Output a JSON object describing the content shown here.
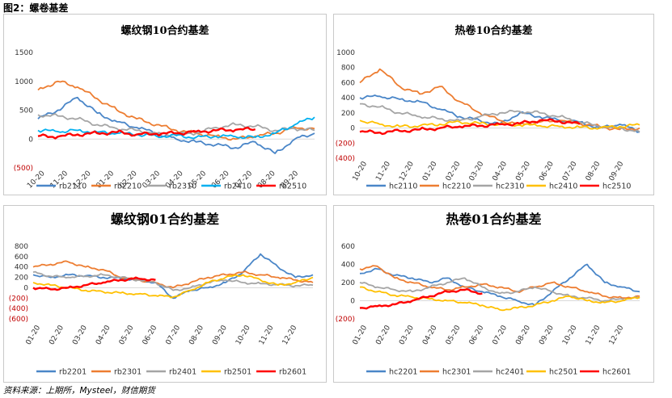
{
  "page": {
    "figure_title": "图2：螺卷基差",
    "source": "资料来源：上期所，Mysteel，财信期货"
  },
  "colors": {
    "blue": "#4a86c8",
    "orange": "#ed7d31",
    "gray": "#a5a5a5",
    "cyan": "#00b0f0",
    "yellow": "#ffc000",
    "red": "#ff0000",
    "negative_label": "#c00000"
  },
  "chart_data": [
    {
      "type": "line",
      "title": "螺纹钢10合约基差",
      "x_tick_labels": [
        "10-20",
        "11-20",
        "12-20",
        "01-20",
        "02-20",
        "03-20",
        "04-20",
        "05-20",
        "06-20",
        "07-20",
        "08-20",
        "09-20"
      ],
      "y_tick_labels": [
        "1500",
        "1000",
        "500",
        "0",
        "(500)"
      ],
      "ylim": [
        -500,
        1500
      ],
      "legend_position": "bottom",
      "series": [
        {
          "name": "rb2110",
          "color": "#4a86c8",
          "values": [
            350,
            500,
            720,
            450,
            300,
            200,
            100,
            0,
            -50,
            -100,
            -150,
            -50,
            -250,
            0,
            100
          ]
        },
        {
          "name": "rb2210",
          "color": "#ed7d31",
          "values": [
            850,
            1000,
            900,
            700,
            500,
            350,
            250,
            150,
            100,
            50,
            0,
            50,
            100,
            200,
            180
          ]
        },
        {
          "name": "rb2310",
          "color": "#a5a5a5",
          "values": [
            420,
            400,
            350,
            250,
            180,
            150,
            100,
            80,
            100,
            200,
            250,
            220,
            150,
            180,
            150
          ]
        },
        {
          "name": "rb2410",
          "color": "#00b0f0",
          "values": [
            150,
            130,
            150,
            120,
            100,
            80,
            50,
            60,
            30,
            50,
            40,
            30,
            100,
            250,
            380
          ]
        },
        {
          "name": "rb2510",
          "color": "#ff0000",
          "values": [
            50,
            40,
            80,
            100,
            120,
            80,
            90,
            100,
            130,
            150,
            160,
            170,
            null,
            null,
            null
          ]
        }
      ]
    },
    {
      "type": "line",
      "title": "热卷10合约基差",
      "x_tick_labels": [
        "10-20",
        "11-20",
        "12-20",
        "01-20",
        "02-20",
        "03-20",
        "04-20",
        "05-20",
        "06-20",
        "07-20",
        "08-20",
        "09-20"
      ],
      "y_tick_labels": [
        "1000",
        "800",
        "600",
        "400",
        "200",
        "0",
        "(200)",
        "(400)"
      ],
      "ylim": [
        -400,
        1000
      ],
      "legend_position": "bottom",
      "series": [
        {
          "name": "hc2110",
          "color": "#4a86c8",
          "values": [
            400,
            420,
            380,
            350,
            250,
            150,
            100,
            50,
            200,
            150,
            100,
            80,
            0,
            50,
            -50
          ]
        },
        {
          "name": "hc2210",
          "color": "#ed7d31",
          "values": [
            600,
            780,
            550,
            450,
            550,
            350,
            200,
            100,
            50,
            80,
            100,
            60,
            20,
            -20,
            0
          ]
        },
        {
          "name": "hc2310",
          "color": "#a5a5a5",
          "values": [
            320,
            280,
            200,
            150,
            120,
            100,
            150,
            200,
            220,
            200,
            150,
            80,
            20,
            0,
            -50
          ]
        },
        {
          "name": "hc2410",
          "color": "#ffc000",
          "values": [
            100,
            50,
            20,
            30,
            50,
            80,
            60,
            50,
            40,
            30,
            20,
            10,
            0,
            20,
            40
          ]
        },
        {
          "name": "hc2510",
          "color": "#ff0000",
          "values": [
            -50,
            -60,
            -40,
            -20,
            0,
            20,
            30,
            50,
            60,
            100,
            90,
            50,
            null,
            null,
            null
          ]
        }
      ]
    },
    {
      "type": "line",
      "title": "螺纹钢01合约基差",
      "x_tick_labels": [
        "01-20",
        "02-20",
        "03-20",
        "04-20",
        "05-20",
        "06-20",
        "07-20",
        "08-20",
        "09-20",
        "10-20",
        "11-20",
        "12-20"
      ],
      "y_tick_labels": [
        "800",
        "600",
        "400",
        "200",
        "0",
        "(200)",
        "(400)",
        "(600)"
      ],
      "ylim": [
        -600,
        800
      ],
      "legend_position": "bottom",
      "series": [
        {
          "name": "rb2201",
          "color": "#4a86c8",
          "values": [
            250,
            200,
            250,
            230,
            200,
            180,
            150,
            100,
            -200,
            -50,
            0,
            100,
            300,
            650,
            400,
            200,
            250
          ]
        },
        {
          "name": "rb2301",
          "color": "#ed7d31",
          "values": [
            400,
            450,
            500,
            400,
            350,
            200,
            150,
            100,
            0,
            100,
            200,
            250,
            300,
            250,
            200,
            150,
            100
          ]
        },
        {
          "name": "rb2401",
          "color": "#a5a5a5",
          "values": [
            300,
            220,
            200,
            220,
            250,
            200,
            150,
            100,
            -50,
            0,
            100,
            150,
            100,
            80,
            60,
            40,
            50
          ]
        },
        {
          "name": "rb2501",
          "color": "#ffc000",
          "values": [
            100,
            50,
            0,
            -50,
            -80,
            -100,
            -120,
            -150,
            -180,
            -50,
            100,
            200,
            250,
            150,
            50,
            100,
            200
          ]
        },
        {
          "name": "rb2601",
          "color": "#ff0000",
          "values": [
            0,
            -30,
            0,
            50,
            100,
            150,
            180,
            150,
            null,
            null,
            null,
            null,
            null,
            null,
            null,
            null,
            null
          ]
        }
      ]
    },
    {
      "type": "line",
      "title": "热卷01合约基差",
      "x_tick_labels": [
        "01-20",
        "02-20",
        "03-20",
        "04-20",
        "05-20",
        "06-20",
        "07-20",
        "08-20",
        "09-20",
        "10-20",
        "11-20",
        "12-20"
      ],
      "y_tick_labels": [
        "600",
        "400",
        "200",
        "0",
        "(200)"
      ],
      "ylim": [
        -200,
        600
      ],
      "legend_position": "bottom",
      "series": [
        {
          "name": "hc2201",
          "color": "#4a86c8",
          "values": [
            300,
            350,
            280,
            250,
            200,
            250,
            150,
            100,
            50,
            0,
            -50,
            100,
            250,
            400,
            200,
            150,
            100
          ]
        },
        {
          "name": "hc2301",
          "color": "#ed7d31",
          "values": [
            350,
            380,
            250,
            200,
            150,
            120,
            150,
            180,
            150,
            100,
            150,
            200,
            150,
            100,
            50,
            30,
            50
          ]
        },
        {
          "name": "hc2401",
          "color": "#a5a5a5",
          "values": [
            200,
            150,
            120,
            100,
            150,
            200,
            250,
            150,
            80,
            100,
            150,
            100,
            50,
            30,
            0,
            20,
            30
          ]
        },
        {
          "name": "hc2501",
          "color": "#ffc000",
          "values": [
            150,
            100,
            60,
            40,
            20,
            0,
            -20,
            -50,
            -100,
            -80,
            -50,
            0,
            50,
            0,
            -20,
            0,
            40
          ]
        },
        {
          "name": "hc2601",
          "color": "#ff0000",
          "values": [
            -80,
            -60,
            -40,
            0,
            50,
            100,
            120,
            80,
            null,
            null,
            null,
            null,
            null,
            null,
            null,
            null,
            null
          ]
        }
      ]
    }
  ]
}
